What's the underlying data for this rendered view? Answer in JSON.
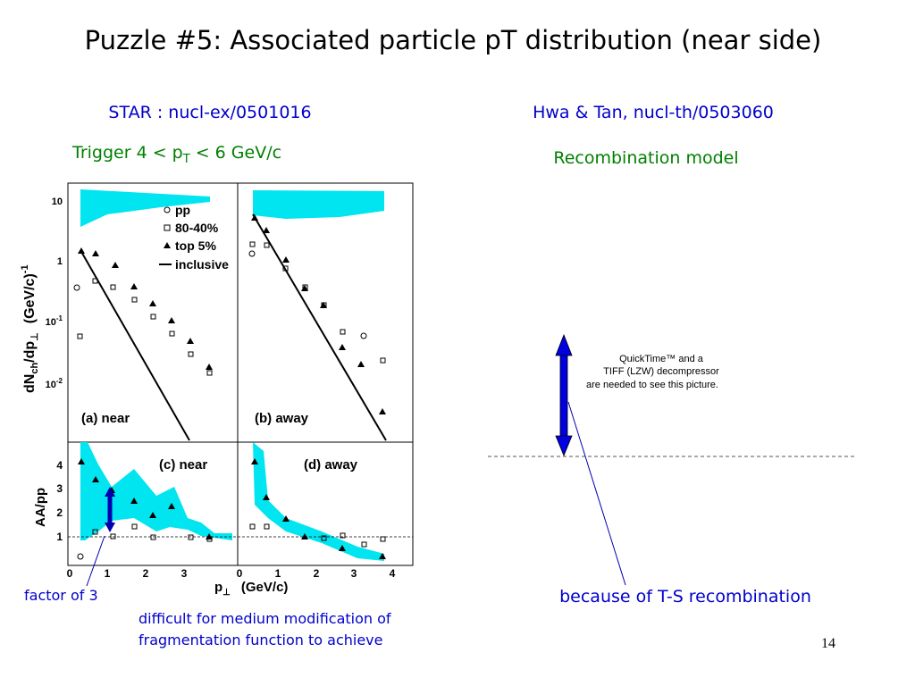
{
  "slide": {
    "title": "Puzzle #5: Associated particle pT distribution (near side)",
    "left_heading": "STAR : nucl-ex/0501016",
    "trigger": {
      "pre": "Trigger  4 < p",
      "sub": "T",
      "post": " < 6 GeV/c"
    },
    "right_heading": "Hwa & Tan, nucl-th/0503060",
    "right_subheading": "Recombination model",
    "placeholder": [
      "QuickTime™ and a",
      "TIFF (LZW) decompressor",
      "are needed to see this picture."
    ],
    "factor_note": "factor of 3",
    "difficult_note": [
      "difficult for medium modification of",
      "fragmentation function to achieve"
    ],
    "recombination_note": "because of T-S recombination",
    "page_number": "14",
    "figure": {
      "legend": [
        "pp",
        "80-40%",
        "top 5%",
        "inclusive"
      ],
      "panels": [
        "(a) near",
        "(b) away",
        "(c) near",
        "(d) away"
      ],
      "y_label_top": {
        "main": "dN",
        "sub1": "ch",
        "mid": "/dp",
        "sub2": "⊥",
        "unit": "(GeV/c)",
        "exp": "-1"
      },
      "y_label_bottom": "AA/pp",
      "x_label": {
        "main": "p",
        "sub": "⊥",
        "unit": "(GeV/c)"
      },
      "top_y_ticks": [
        {
          "base": "10",
          "exp": ""
        },
        {
          "base": "1",
          "exp": ""
        },
        {
          "base": "10",
          "exp": "-1"
        },
        {
          "base": "10",
          "exp": "-2"
        }
      ],
      "bottom_y_ticks": [
        "4",
        "3",
        "2",
        "1"
      ],
      "x_ticks_left": [
        "0",
        "1",
        "2",
        "3"
      ],
      "x_ticks_right": [
        "0",
        "1",
        "2",
        "3",
        "4"
      ]
    }
  }
}
